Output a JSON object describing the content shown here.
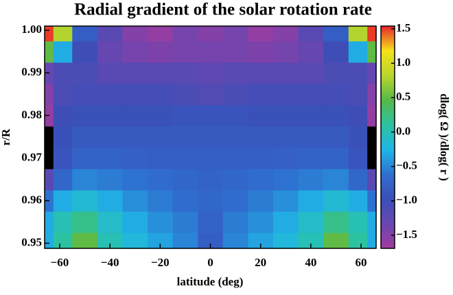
{
  "chart_data": {
    "type": "contour",
    "title": "Radial gradient of the solar rotation rate",
    "x_label": "latitude (deg)",
    "y_label": "r/R",
    "colorbar_label": "dlog( Ω )/dlog( r )",
    "x": [
      -65,
      -60,
      -50,
      -40,
      -30,
      -20,
      -10,
      0,
      10,
      20,
      30,
      40,
      50,
      60,
      65
    ],
    "y": [
      0.95,
      0.955,
      0.96,
      0.965,
      0.97,
      0.975,
      0.98,
      0.985,
      0.99,
      0.995,
      1.0
    ],
    "z": [
      [
        -0.3,
        0.1,
        0.5,
        0.0,
        -0.2,
        -0.35,
        -0.5,
        -0.8,
        -0.5,
        -0.35,
        -0.2,
        0.0,
        0.5,
        0.1,
        -0.3
      ],
      [
        -0.3,
        0.0,
        0.2,
        -0.1,
        -0.3,
        -0.45,
        -0.55,
        -0.75,
        -0.55,
        -0.45,
        -0.3,
        -0.1,
        0.2,
        0.0,
        -0.3
      ],
      [
        -0.6,
        -0.3,
        -0.15,
        -0.3,
        -0.45,
        -0.55,
        -0.65,
        -0.7,
        -0.65,
        -0.55,
        -0.45,
        -0.3,
        -0.15,
        -0.3,
        -0.6
      ],
      [
        -1.2,
        -0.7,
        -0.5,
        -0.55,
        -0.6,
        -0.65,
        -0.7,
        -0.75,
        -0.7,
        -0.65,
        -0.6,
        -0.55,
        -0.5,
        -0.7,
        -1.2
      ],
      [
        -1.7,
        -0.9,
        -0.75,
        -0.75,
        -0.78,
        -0.8,
        -0.8,
        -0.8,
        -0.8,
        -0.8,
        -0.78,
        -0.75,
        -0.75,
        -0.9,
        -1.7
      ],
      [
        -1.7,
        -0.95,
        -0.85,
        -0.85,
        -0.85,
        -0.85,
        -0.85,
        -0.85,
        -0.85,
        -0.85,
        -0.85,
        -0.85,
        -0.85,
        -0.95,
        -1.7
      ],
      [
        -1.6,
        -1.0,
        -0.95,
        -0.95,
        -0.95,
        -0.95,
        -0.9,
        -0.9,
        -0.9,
        -0.95,
        -0.95,
        -0.95,
        -0.95,
        -1.0,
        -1.6
      ],
      [
        -1.5,
        -1.1,
        -1.05,
        -1.05,
        -1.05,
        -1.05,
        -1.1,
        -1.15,
        -1.1,
        -1.05,
        -1.05,
        -1.05,
        -1.05,
        -1.1,
        -1.5
      ],
      [
        -1.3,
        -1.1,
        -1.1,
        -1.2,
        -1.2,
        -1.2,
        -1.2,
        -1.25,
        -1.2,
        -1.2,
        -1.2,
        -1.2,
        -1.1,
        -1.1,
        -1.3
      ],
      [
        0.5,
        -0.3,
        -1.0,
        -1.3,
        -1.4,
        -1.45,
        -1.4,
        -1.4,
        -1.4,
        -1.45,
        -1.4,
        -1.3,
        -1.0,
        -0.3,
        0.5
      ],
      [
        1.5,
        0.8,
        -0.8,
        -1.2,
        -1.5,
        -1.6,
        -1.4,
        -1.5,
        -1.4,
        -1.6,
        -1.5,
        -1.2,
        -0.8,
        0.8,
        1.5
      ]
    ],
    "xlim": [
      -66,
      66
    ],
    "ylim": [
      0.9488,
      1.001
    ],
    "clim": [
      -1.69,
      1.54
    ],
    "colormap": [
      "#a23b9e",
      "#6a46b0",
      "#3b4fb8",
      "#2f6fd0",
      "#1fb6e6",
      "#2cc2a0",
      "#55b848",
      "#b9d62c",
      "#f5e11a",
      "#e8262a"
    ],
    "xticks": [
      {
        "value": -60,
        "label": "−60"
      },
      {
        "value": -40,
        "label": "−40"
      },
      {
        "value": -20,
        "label": "−20"
      },
      0,
      20,
      40,
      60
    ],
    "yticks": [
      0.95,
      0.96,
      0.97,
      0.98,
      0.99,
      {
        "value": 1,
        "label": "1.00"
      }
    ],
    "cticks": [
      {
        "value": -1.5,
        "label": "−1.5"
      },
      {
        "value": -1,
        "label": "−1.0"
      },
      {
        "value": -0.5,
        "label": "−0.5"
      },
      {
        "value": 0,
        "label": "0.0"
      },
      0.5,
      {
        "value": 1,
        "label": "1.0"
      },
      1.5
    ]
  }
}
